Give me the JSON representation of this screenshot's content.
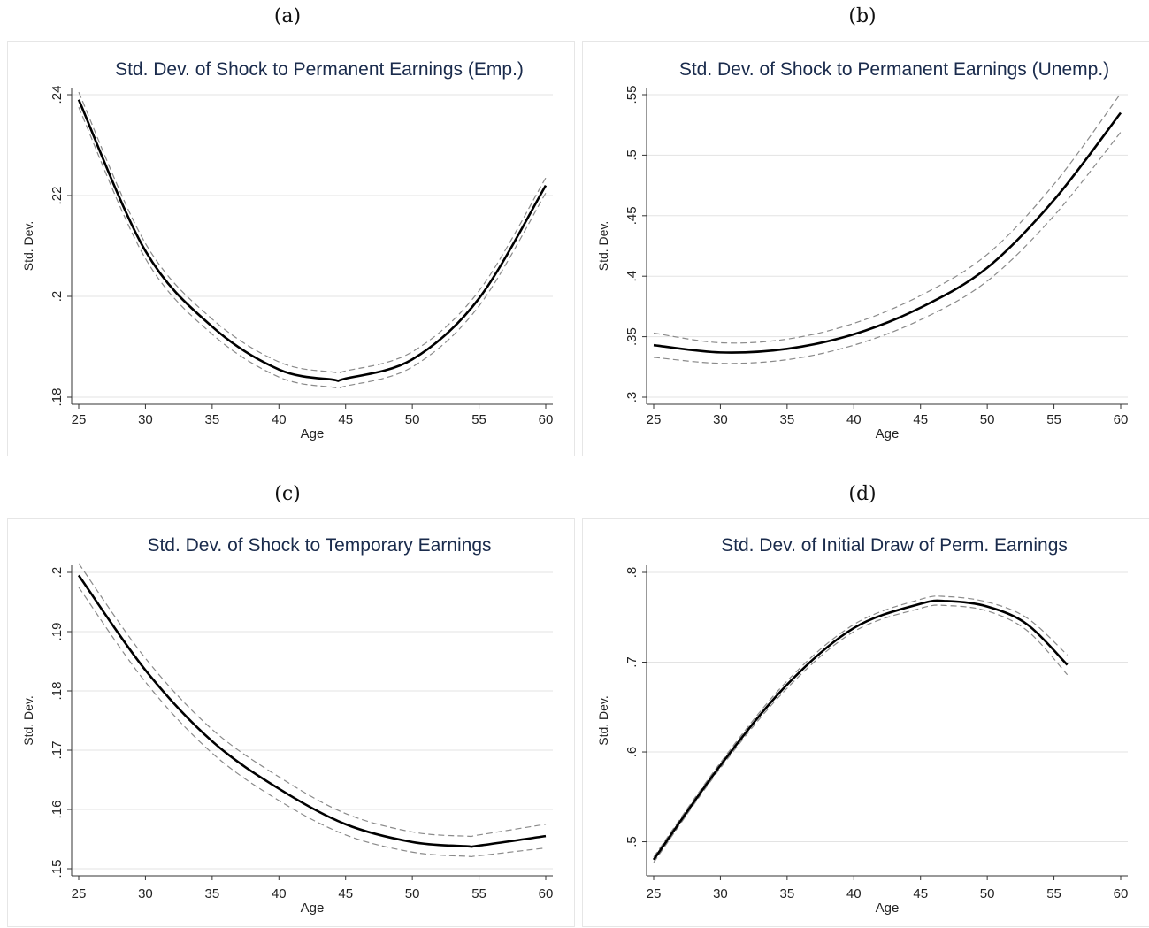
{
  "panels": [
    {
      "label": "(a)"
    },
    {
      "label": "(b)"
    },
    {
      "label": "(c)"
    },
    {
      "label": "(d)"
    }
  ],
  "chart_data": [
    {
      "type": "line",
      "title": "Std. Dev. of Shock to Permanent Earnings (Emp.)",
      "xlabel": "Age",
      "ylabel": "Std. Dev.",
      "xlim": [
        25,
        60
      ],
      "ylim": [
        0.18,
        0.24
      ],
      "xticks": [
        25,
        30,
        35,
        40,
        45,
        50,
        55,
        60
      ],
      "xtick_labels": [
        "25",
        "30",
        "35",
        "40",
        "45",
        "50",
        "55",
        "60"
      ],
      "yticks": [
        0.18,
        0.2,
        0.22,
        0.24
      ],
      "ytick_labels": [
        ".18",
        ".2",
        ".22",
        ".24"
      ],
      "grid": true,
      "x": [
        25,
        30,
        35,
        40,
        44,
        45,
        50,
        55,
        60
      ],
      "series": [
        {
          "values": [
            0.239,
            0.209,
            0.194,
            0.1855,
            0.1835,
            0.1837,
            0.1875,
            0.1996,
            0.222
          ]
        },
        {
          "values": [
            0.2405,
            0.2105,
            0.1955,
            0.187,
            0.185,
            0.1852,
            0.189,
            0.2011,
            0.2235
          ]
        },
        {
          "values": [
            0.2375,
            0.2075,
            0.1925,
            0.184,
            0.182,
            0.1822,
            0.186,
            0.1981,
            0.2205
          ]
        }
      ]
    },
    {
      "type": "line",
      "title": "Std. Dev. of Shock to Permanent Earnings (Unemp.)",
      "xlabel": "Age",
      "ylabel": "Std. Dev.",
      "xlim": [
        25,
        60
      ],
      "ylim": [
        0.3,
        0.55
      ],
      "xticks": [
        25,
        30,
        35,
        40,
        45,
        50,
        55,
        60
      ],
      "xtick_labels": [
        "25",
        "30",
        "35",
        "40",
        "45",
        "50",
        "55",
        "60"
      ],
      "yticks": [
        0.3,
        0.35,
        0.4,
        0.45,
        0.5,
        0.55
      ],
      "ytick_labels": [
        ".3",
        ".35",
        ".4",
        ".45",
        ".5",
        ".55"
      ],
      "grid": true,
      "x": [
        25,
        30,
        35,
        40,
        45,
        50,
        55,
        60
      ],
      "series": [
        {
          "values": [
            0.343,
            0.337,
            0.34,
            0.352,
            0.374,
            0.407,
            0.463,
            0.535
          ]
        },
        {
          "values": [
            0.353,
            0.345,
            0.348,
            0.361,
            0.384,
            0.418,
            0.476,
            0.551
          ]
        },
        {
          "values": [
            0.333,
            0.328,
            0.331,
            0.343,
            0.364,
            0.396,
            0.45,
            0.519
          ]
        }
      ]
    },
    {
      "type": "line",
      "title": "Std. Dev. of Shock to Temporary Earnings",
      "xlabel": "Age",
      "ylabel": "Std. Dev.",
      "xlim": [
        25,
        60
      ],
      "ylim": [
        0.15,
        0.2
      ],
      "xticks": [
        25,
        30,
        35,
        40,
        45,
        50,
        55,
        60
      ],
      "xtick_labels": [
        "25",
        "30",
        "35",
        "40",
        "45",
        "50",
        "55",
        "60"
      ],
      "yticks": [
        0.15,
        0.16,
        0.17,
        0.18,
        0.19,
        0.2
      ],
      "ytick_labels": [
        ".15",
        ".16",
        ".17",
        ".18",
        ".19",
        ".2"
      ],
      "grid": true,
      "x": [
        25,
        30,
        35,
        40,
        45,
        50,
        54,
        55,
        60
      ],
      "series": [
        {
          "values": [
            0.1995,
            0.1835,
            0.1715,
            0.1635,
            0.1575,
            0.1545,
            0.1538,
            0.1539,
            0.1555
          ]
        },
        {
          "values": [
            0.2015,
            0.1855,
            0.1735,
            0.1655,
            0.1593,
            0.1562,
            0.1555,
            0.1557,
            0.1575
          ]
        },
        {
          "values": [
            0.1975,
            0.1815,
            0.1695,
            0.1615,
            0.1557,
            0.1528,
            0.1521,
            0.1522,
            0.1535
          ]
        }
      ]
    },
    {
      "type": "line",
      "title": "Std. Dev. of Initial Draw of Perm. Earnings",
      "xlabel": "Age",
      "ylabel": "Std. Dev.",
      "xlim": [
        25,
        60
      ],
      "ylim": [
        0.47,
        0.8
      ],
      "xticks": [
        25,
        30,
        35,
        40,
        45,
        50,
        55,
        60
      ],
      "xtick_labels": [
        "25",
        "30",
        "35",
        "40",
        "45",
        "50",
        "55",
        "60"
      ],
      "yticks": [
        0.5,
        0.6,
        0.7,
        0.8
      ],
      "ytick_labels": [
        ".5",
        ".6",
        ".7",
        ".8"
      ],
      "grid": true,
      "x": [
        25,
        30,
        35,
        40,
        45,
        47,
        50,
        53,
        56
      ],
      "series": [
        {
          "values": [
            0.48,
            0.585,
            0.675,
            0.738,
            0.765,
            0.768,
            0.762,
            0.742,
            0.697
          ]
        },
        {
          "values": [
            0.483,
            0.588,
            0.679,
            0.742,
            0.77,
            0.773,
            0.767,
            0.749,
            0.708
          ]
        },
        {
          "values": [
            0.477,
            0.582,
            0.671,
            0.734,
            0.76,
            0.763,
            0.757,
            0.735,
            0.686
          ]
        }
      ]
    }
  ]
}
